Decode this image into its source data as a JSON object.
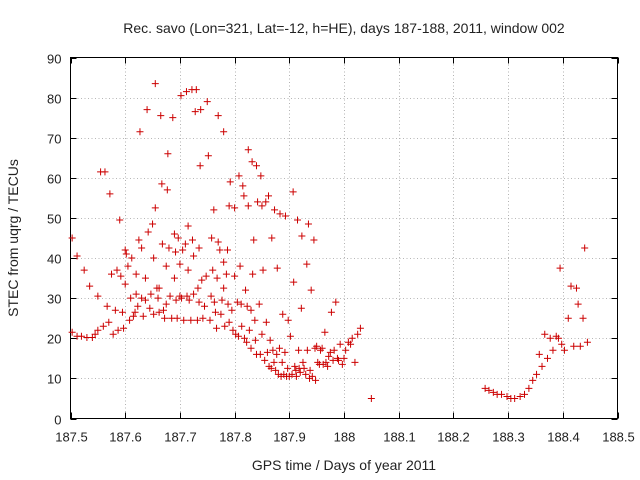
{
  "chart_data": {
    "type": "scatter",
    "title": "Rec. savo (Lon=321, Lat=-12, h=HE), days 187-188, 2011, window 002",
    "xlabel": "GPS time / Days of year 2011",
    "ylabel": "STEC from uqrg / TECUs",
    "xlim": [
      187.5,
      188.5
    ],
    "ylim": [
      0,
      90
    ],
    "xticks": [
      "187.5",
      "187.6",
      "187.7",
      "187.8",
      "187.9",
      "188",
      "188.1",
      "188.2",
      "188.3",
      "188.4",
      "188.5"
    ],
    "yticks": [
      "0",
      "10",
      "20",
      "30",
      "40",
      "50",
      "60",
      "70",
      "80",
      "90"
    ],
    "grid": true,
    "marker": "+",
    "color": "#cc0000",
    "series": [
      {
        "points": [
          [
            187.503,
            45
          ],
          [
            187.503,
            21.5
          ],
          [
            187.512,
            40.5
          ],
          [
            187.512,
            20.5
          ],
          [
            187.52,
            20.5
          ],
          [
            187.525,
            37
          ],
          [
            187.53,
            20.2
          ],
          [
            187.535,
            33
          ],
          [
            187.54,
            20.2
          ],
          [
            187.545,
            21
          ],
          [
            187.55,
            30.5
          ],
          [
            187.55,
            22
          ],
          [
            187.555,
            61.5
          ],
          [
            187.56,
            23
          ],
          [
            187.563,
            61.5
          ],
          [
            187.567,
            28
          ],
          [
            187.57,
            24
          ],
          [
            187.572,
            56
          ],
          [
            187.575,
            36
          ],
          [
            187.578,
            21
          ],
          [
            187.582,
            27
          ],
          [
            187.585,
            37
          ],
          [
            187.587,
            22
          ],
          [
            187.59,
            49.5
          ],
          [
            187.592,
            35.5
          ],
          [
            187.595,
            26.5
          ],
          [
            187.597,
            22.5
          ],
          [
            187.6,
            42
          ],
          [
            187.6,
            33.5
          ],
          [
            187.602,
            41
          ],
          [
            187.605,
            38
          ],
          [
            187.608,
            24.5
          ],
          [
            187.61,
            30
          ],
          [
            187.612,
            40
          ],
          [
            187.615,
            25.5
          ],
          [
            187.618,
            26.5
          ],
          [
            187.62,
            36
          ],
          [
            187.62,
            31
          ],
          [
            187.623,
            28
          ],
          [
            187.625,
            44.5
          ],
          [
            187.627,
            71.5
          ],
          [
            187.63,
            42.5
          ],
          [
            187.63,
            30
          ],
          [
            187.633,
            25.5
          ],
          [
            187.637,
            35
          ],
          [
            187.637,
            29.5
          ],
          [
            187.64,
            77
          ],
          [
            187.642,
            46.5
          ],
          [
            187.645,
            27.5
          ],
          [
            187.647,
            31
          ],
          [
            187.65,
            48.5
          ],
          [
            187.652,
            40
          ],
          [
            187.652,
            26
          ],
          [
            187.655,
            83.5
          ],
          [
            187.655,
            52.5
          ],
          [
            187.658,
            32.5
          ],
          [
            187.66,
            30
          ],
          [
            187.662,
            32.5
          ],
          [
            187.662,
            26.5
          ],
          [
            187.665,
            75.5
          ],
          [
            187.667,
            58.5
          ],
          [
            187.668,
            43.5
          ],
          [
            187.67,
            27
          ],
          [
            187.672,
            25
          ],
          [
            187.675,
            38
          ],
          [
            187.675,
            28.5
          ],
          [
            187.677,
            57
          ],
          [
            187.678,
            66
          ],
          [
            187.68,
            42.5
          ],
          [
            187.682,
            30.5
          ],
          [
            187.685,
            25
          ],
          [
            187.687,
            75
          ],
          [
            187.69,
            46
          ],
          [
            187.69,
            35
          ],
          [
            187.692,
            41.5
          ],
          [
            187.693,
            29.5
          ],
          [
            187.695,
            25
          ],
          [
            187.697,
            45
          ],
          [
            187.7,
            30.5
          ],
          [
            187.7,
            38.5
          ],
          [
            187.702,
            80.5
          ],
          [
            187.703,
            30
          ],
          [
            187.705,
            42
          ],
          [
            187.707,
            24.5
          ],
          [
            187.71,
            43.5
          ],
          [
            187.712,
            81.5
          ],
          [
            187.713,
            30.5
          ],
          [
            187.715,
            48
          ],
          [
            187.715,
            37
          ],
          [
            187.717,
            29.5
          ],
          [
            187.72,
            24.5
          ],
          [
            187.722,
            82
          ],
          [
            187.723,
            44.5
          ],
          [
            187.725,
            40.5
          ],
          [
            187.725,
            31
          ],
          [
            187.728,
            76.5
          ],
          [
            187.73,
            82
          ],
          [
            187.732,
            24.5
          ],
          [
            187.733,
            32.5
          ],
          [
            187.735,
            42.5
          ],
          [
            187.735,
            29
          ],
          [
            187.737,
            63
          ],
          [
            187.738,
            77
          ],
          [
            187.74,
            34.5
          ],
          [
            187.742,
            25
          ],
          [
            187.745,
            28
          ],
          [
            187.748,
            35.5
          ],
          [
            187.75,
            79
          ],
          [
            187.752,
            65.5
          ],
          [
            187.755,
            24.5
          ],
          [
            187.757,
            30.5
          ],
          [
            187.758,
            45
          ],
          [
            187.76,
            37
          ],
          [
            187.762,
            52
          ],
          [
            187.763,
            29
          ],
          [
            187.765,
            26.5
          ],
          [
            187.767,
            22.5
          ],
          [
            187.768,
            35
          ],
          [
            187.77,
            75.5
          ],
          [
            187.77,
            44
          ],
          [
            187.773,
            42
          ],
          [
            187.775,
            26
          ],
          [
            187.777,
            29.5
          ],
          [
            187.78,
            32.5
          ],
          [
            187.78,
            71.5
          ],
          [
            187.78,
            39
          ],
          [
            187.782,
            23
          ],
          [
            187.785,
            36
          ],
          [
            187.787,
            42
          ],
          [
            187.788,
            28.5
          ],
          [
            187.79,
            53
          ],
          [
            187.79,
            24
          ],
          [
            187.792,
            59
          ],
          [
            187.795,
            27
          ],
          [
            187.797,
            22
          ],
          [
            187.8,
            52.5
          ],
          [
            187.8,
            35.5
          ],
          [
            187.802,
            21
          ],
          [
            187.805,
            29
          ],
          [
            187.807,
            20.5
          ],
          [
            187.808,
            60.5
          ],
          [
            187.81,
            38
          ],
          [
            187.812,
            28.5
          ],
          [
            187.813,
            23
          ],
          [
            187.815,
            58
          ],
          [
            187.817,
            55.5
          ],
          [
            187.818,
            20
          ],
          [
            187.82,
            32
          ],
          [
            187.822,
            19
          ],
          [
            187.823,
            28
          ],
          [
            187.825,
            53
          ],
          [
            187.825,
            67
          ],
          [
            187.827,
            22
          ],
          [
            187.83,
            27
          ],
          [
            187.83,
            17.5
          ],
          [
            187.832,
            64
          ],
          [
            187.833,
            36
          ],
          [
            187.835,
            44.5
          ],
          [
            187.837,
            24.5
          ],
          [
            187.838,
            19.5
          ],
          [
            187.84,
            63
          ],
          [
            187.84,
            16
          ],
          [
            187.842,
            54
          ],
          [
            187.845,
            28.5
          ],
          [
            187.847,
            16
          ],
          [
            187.848,
            60.5
          ],
          [
            187.85,
            53
          ],
          [
            187.85,
            21
          ],
          [
            187.852,
            37
          ],
          [
            187.855,
            14.5
          ],
          [
            187.857,
            54
          ],
          [
            187.858,
            24
          ],
          [
            187.86,
            16.5
          ],
          [
            187.862,
            55.5
          ],
          [
            187.863,
            13
          ],
          [
            187.865,
            19.5
          ],
          [
            187.867,
            12.5
          ],
          [
            187.868,
            45
          ],
          [
            187.87,
            17
          ],
          [
            187.872,
            14
          ],
          [
            187.873,
            52
          ],
          [
            187.875,
            12
          ],
          [
            187.877,
            16
          ],
          [
            187.878,
            37.5
          ],
          [
            187.88,
            11
          ],
          [
            187.882,
            17.5
          ],
          [
            187.883,
            51
          ],
          [
            187.885,
            10.5
          ],
          [
            187.887,
            14
          ],
          [
            187.888,
            26
          ],
          [
            187.89,
            11
          ],
          [
            187.892,
            16.5
          ],
          [
            187.893,
            50.5
          ],
          [
            187.895,
            10.5
          ],
          [
            187.897,
            12.5
          ],
          [
            187.898,
            24.5
          ],
          [
            187.9,
            10.5
          ],
          [
            187.902,
            20.5
          ],
          [
            187.905,
            11
          ],
          [
            187.907,
            56.5
          ],
          [
            187.908,
            34
          ],
          [
            187.91,
            13
          ],
          [
            187.912,
            12
          ],
          [
            187.913,
            10.5
          ],
          [
            187.915,
            49.5
          ],
          [
            187.917,
            17
          ],
          [
            187.918,
            12.5
          ],
          [
            187.92,
            11.5
          ],
          [
            187.922,
            27.5
          ],
          [
            187.923,
            45.5
          ],
          [
            187.925,
            14
          ],
          [
            187.927,
            12.5
          ],
          [
            187.93,
            11
          ],
          [
            187.932,
            38.5
          ],
          [
            187.933,
            17
          ],
          [
            187.935,
            48.5
          ],
          [
            187.937,
            10
          ],
          [
            187.938,
            12
          ],
          [
            187.94,
            32
          ],
          [
            187.942,
            10.5
          ],
          [
            187.945,
            44.5
          ],
          [
            187.947,
            17.5
          ],
          [
            187.948,
            9.5
          ],
          [
            187.95,
            18
          ],
          [
            187.952,
            14
          ],
          [
            187.955,
            13.5
          ],
          [
            187.957,
            17
          ],
          [
            187.96,
            17.5
          ],
          [
            187.962,
            13.5
          ],
          [
            187.965,
            21.5
          ],
          [
            187.967,
            14
          ],
          [
            187.97,
            13
          ],
          [
            187.972,
            15.5
          ],
          [
            187.975,
            16.5
          ],
          [
            187.977,
            26.5
          ],
          [
            187.98,
            14.5
          ],
          [
            187.982,
            17
          ],
          [
            187.985,
            29
          ],
          [
            187.988,
            15
          ],
          [
            187.99,
            14.5
          ],
          [
            187.993,
            18.5
          ],
          [
            187.997,
            13.5
          ],
          [
            188.0,
            15
          ],
          [
            188.003,
            17
          ],
          [
            188.008,
            19
          ],
          [
            188.012,
            18.5
          ],
          [
            188.015,
            20
          ],
          [
            188.02,
            14
          ],
          [
            188.025,
            21
          ],
          [
            188.03,
            22.5
          ],
          [
            188.05,
            5
          ],
          [
            188.258,
            7.5
          ],
          [
            188.265,
            7
          ],
          [
            188.273,
            6.5
          ],
          [
            188.28,
            6
          ],
          [
            188.288,
            6
          ],
          [
            188.298,
            5.5
          ],
          [
            188.305,
            5
          ],
          [
            188.312,
            5
          ],
          [
            188.322,
            5.5
          ],
          [
            188.33,
            6
          ],
          [
            188.338,
            7.5
          ],
          [
            188.345,
            9.5
          ],
          [
            188.352,
            11
          ],
          [
            188.357,
            16
          ],
          [
            188.362,
            13
          ],
          [
            188.367,
            21
          ],
          [
            188.372,
            15
          ],
          [
            188.377,
            20
          ],
          [
            188.382,
            17
          ],
          [
            188.388,
            20.5
          ],
          [
            188.392,
            20
          ],
          [
            188.395,
            37.5
          ],
          [
            188.398,
            18.5
          ],
          [
            188.403,
            17
          ],
          [
            188.41,
            25
          ],
          [
            188.415,
            33
          ],
          [
            188.42,
            18
          ],
          [
            188.425,
            32.5
          ],
          [
            188.428,
            28.5
          ],
          [
            188.432,
            18
          ],
          [
            188.437,
            25
          ],
          [
            188.44,
            42.5
          ],
          [
            188.445,
            19
          ]
        ]
      }
    ]
  }
}
